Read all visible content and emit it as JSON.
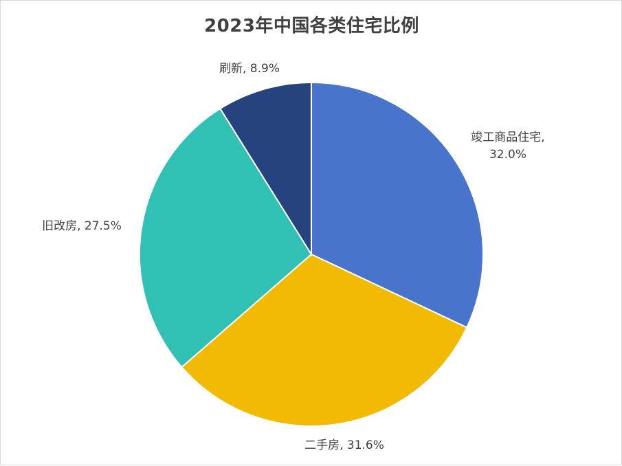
{
  "chart_data": {
    "type": "pie",
    "title": "2023年中国各类住宅比例",
    "slices": [
      {
        "name": "竣工商品住宅",
        "value": 32.0,
        "percent_label": "32.0%",
        "color": "#4874CB"
      },
      {
        "name": "二手房",
        "value": 31.6,
        "percent_label": "31.6%",
        "color": "#F2BA02"
      },
      {
        "name": "旧改房",
        "value": 27.5,
        "percent_label": "27.5%",
        "color": "#30C0B4"
      },
      {
        "name": "刷新",
        "value": 8.9,
        "percent_label": "8.9%",
        "color": "#264380"
      }
    ],
    "start_angle_deg": 0,
    "direction": "clockwise",
    "slice_border_color": "#ffffff"
  }
}
